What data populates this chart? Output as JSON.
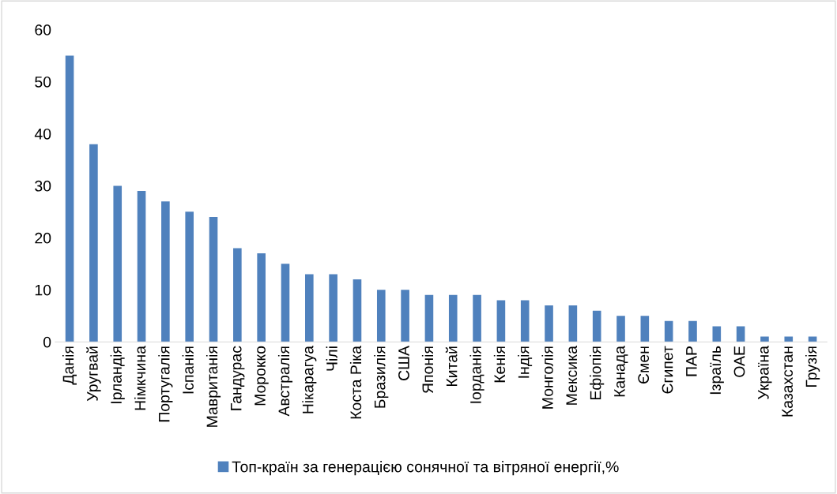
{
  "chart_data": {
    "type": "bar",
    "categories": [
      "Данія",
      "Уругвай",
      "Ірландія",
      "Німкчина",
      "Португалія",
      "Іспанія",
      "Мавританія",
      "Гандурас",
      "Морокко",
      "Австралія",
      "Нікарагуа",
      "Чілі",
      "Коста Ріка",
      "Бразилія",
      "США",
      "Японія",
      "Китай",
      "Іорданія",
      "Кенія",
      "Індія",
      "Монголія",
      "Мексика",
      "Ефіопія",
      "Канада",
      "Ємен",
      "Єгипет",
      "ПАР",
      "Ізраїль",
      "ОАЕ",
      "Україна",
      "Казахстан",
      "Грузія"
    ],
    "series": [
      {
        "name": "Топ-країн за генерацією сонячної та вітряної енергії,%",
        "color": "#4f81bd",
        "values": [
          55,
          38,
          30,
          29,
          27,
          25,
          24,
          18,
          17,
          15,
          13,
          13,
          12,
          10,
          10,
          9,
          9,
          9,
          8,
          8,
          7,
          7,
          6,
          5,
          5,
          4,
          4,
          3,
          3,
          1,
          1,
          1
        ]
      }
    ],
    "ylim": [
      0,
      60
    ],
    "yticks": [
      0,
      10,
      20,
      30,
      40,
      50,
      60
    ],
    "grid": false,
    "legend": "bottom"
  }
}
